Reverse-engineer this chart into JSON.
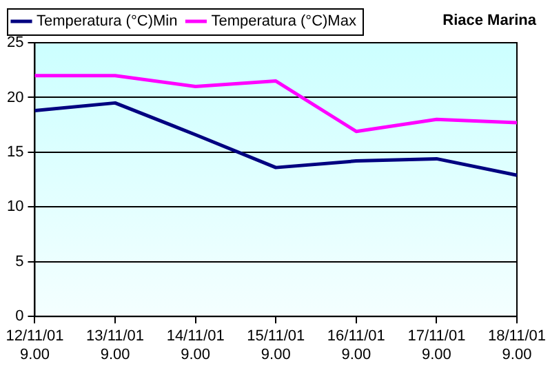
{
  "chart_data": {
    "type": "line",
    "title": "Riace Marina",
    "categories": [
      "12/11/01\n9.00",
      "13/11/01\n9.00",
      "14/11/01\n9.00",
      "15/11/01\n9.00",
      "16/11/01\n9.00",
      "17/11/01\n9.00",
      "18/11/01\n9.00"
    ],
    "series": [
      {
        "name": "Temperatura (°C)Min",
        "color": "#000080",
        "values": [
          18.8,
          19.5,
          16.6,
          13.6,
          14.2,
          14.4,
          12.9
        ]
      },
      {
        "name": "Temperatura (°C)Max",
        "color": "#ff00ff",
        "values": [
          22.0,
          22.0,
          21.0,
          21.5,
          16.9,
          18.0,
          17.7
        ]
      }
    ],
    "ylim": [
      0,
      25
    ],
    "yticks": [
      0,
      5,
      10,
      15,
      20,
      25
    ],
    "grid": "y",
    "legend": "top left",
    "marker": "none",
    "line_style": "solid"
  }
}
